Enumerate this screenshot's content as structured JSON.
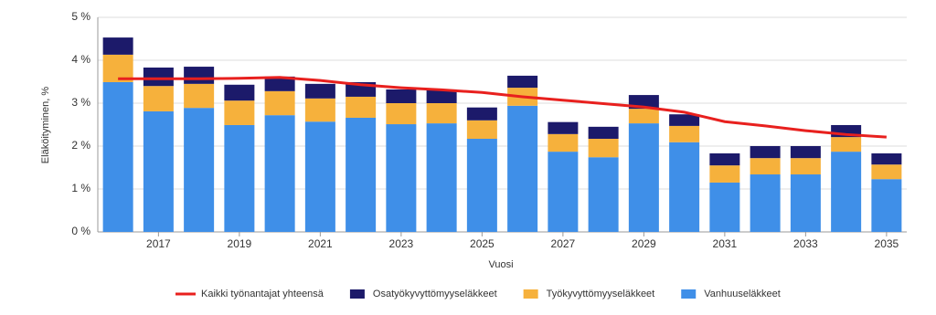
{
  "chart_data": {
    "type": "stacked-bar-line",
    "y_label": "Eläköityminen, %",
    "x_label": "Vuosi",
    "categories": [
      null,
      "2017",
      null,
      "2019",
      null,
      "2021",
      null,
      "2023",
      null,
      "2025",
      null,
      "2027",
      null,
      "2029",
      null,
      "2031",
      null,
      "2033",
      null,
      "2035"
    ],
    "series": [
      {
        "name": "Kaikki työnantajat yhteensä",
        "type": "line",
        "color": "#e8201e",
        "values": [
          3.57,
          3.57,
          3.57,
          3.58,
          3.6,
          3.53,
          3.43,
          3.36,
          3.31,
          3.25,
          3.15,
          3.07,
          2.99,
          2.91,
          2.79,
          2.57,
          2.47,
          2.36,
          2.27,
          2.21
        ]
      },
      {
        "name": "Osatyökyvyttömyyseläkkeet",
        "type": "bar",
        "color": "#1c1a6a",
        "values": [
          0.4,
          0.43,
          0.4,
          0.37,
          0.34,
          0.34,
          0.34,
          0.32,
          0.32,
          0.3,
          0.28,
          0.28,
          0.28,
          0.32,
          0.27,
          0.28,
          0.28,
          0.28,
          0.28,
          0.26
        ]
      },
      {
        "name": "Työkyvyttömyyseläkkeet",
        "type": "bar",
        "color": "#f6b13c",
        "values": [
          0.64,
          0.59,
          0.56,
          0.57,
          0.56,
          0.54,
          0.49,
          0.49,
          0.47,
          0.43,
          0.42,
          0.41,
          0.43,
          0.34,
          0.38,
          0.4,
          0.38,
          0.38,
          0.34,
          0.34
        ]
      },
      {
        "name": "Vanhuuseläkkeet",
        "type": "bar",
        "color": "#3f8fe8",
        "values": [
          3.49,
          2.81,
          2.89,
          2.49,
          2.72,
          2.57,
          2.66,
          2.51,
          2.53,
          2.17,
          2.94,
          1.87,
          1.74,
          2.53,
          2.09,
          1.15,
          1.34,
          1.34,
          1.87,
          1.23
        ]
      }
    ],
    "ylim": [
      0,
      5
    ],
    "yticks": [
      {
        "value": 0,
        "label": "0 %"
      },
      {
        "value": 1,
        "label": "1 %"
      },
      {
        "value": 2,
        "label": "2 %"
      },
      {
        "value": 3,
        "label": "3 %"
      },
      {
        "value": 4,
        "label": "4 %"
      },
      {
        "value": 5,
        "label": "5 %"
      }
    ],
    "grid": true
  }
}
